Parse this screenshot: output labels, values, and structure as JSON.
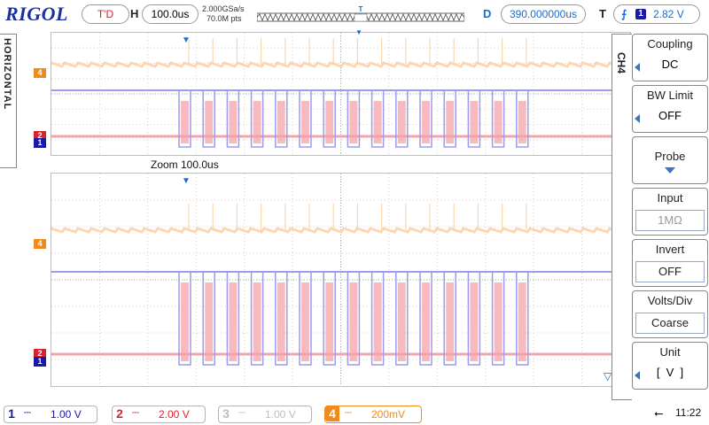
{
  "header": {
    "brand": "RIGOL",
    "trigger_state": "T'D",
    "h_label": "H",
    "timebase": "100.0us",
    "sample_rate": "2.000GSa/s",
    "memory_depth": "70.0M pts",
    "delay_label": "D",
    "delay_value": "390.000000us",
    "trigger_label": "T",
    "trigger_source": "1",
    "trigger_level": "2.82 V"
  },
  "side_tab": {
    "label": "HORIZONTAL"
  },
  "zoom": {
    "label": "Zoom 100.0us"
  },
  "markers": {
    "ch4": "4",
    "ch2": "2",
    "ch1": "1"
  },
  "menu": {
    "title": "CH4",
    "items": [
      {
        "title": "Coupling",
        "value": "DC"
      },
      {
        "title": "BW Limit",
        "value": "OFF"
      },
      {
        "title": "Probe",
        "value": ""
      },
      {
        "title": "Input",
        "value": "1MΩ"
      },
      {
        "title": "Invert",
        "value": "OFF"
      },
      {
        "title": "Volts/Div",
        "value": "Coarse"
      },
      {
        "title": "Unit",
        "value": "[  V  ]"
      }
    ]
  },
  "channels": [
    {
      "num": "1",
      "scale": "1.00 V",
      "color": "#1a1aa8"
    },
    {
      "num": "2",
      "scale": "2.00 V",
      "color": "#d6232f"
    },
    {
      "num": "3",
      "scale": "1.00 V",
      "color": "#bdbdbd"
    },
    {
      "num": "4",
      "scale": "200mV",
      "color": "#f08a1c"
    }
  ],
  "status": {
    "time": "11:22",
    "usb": "usb-icon"
  },
  "colors": {
    "ch1": "#9c9cf0",
    "ch2": "#f4a3a8",
    "ch4": "#fbd6b0",
    "accent": "#1c6bd1"
  }
}
